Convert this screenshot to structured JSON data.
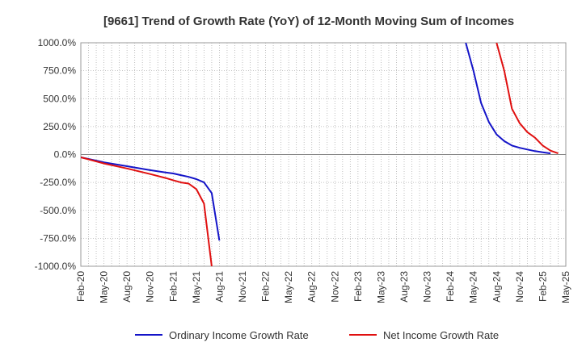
{
  "chart_data": {
    "type": "line",
    "title": "[9661]  Trend of Growth Rate (YoY) of 12-Month Moving Sum of Incomes",
    "xlabel": "",
    "ylabel": "",
    "ylim": [
      -1000,
      1000
    ],
    "y_ticks": [
      1000,
      750,
      500,
      250,
      0,
      -250,
      -500,
      -750,
      -1000
    ],
    "y_tick_labels": [
      "1000.0%",
      "750.0%",
      "500.0%",
      "250.0%",
      "0.0%",
      "-250.0%",
      "-500.0%",
      "-750.0%",
      "-1000.0%"
    ],
    "x_range": [
      "2020-02",
      "2025-05"
    ],
    "x_tick_labels": [
      "Feb-20",
      "May-20",
      "Aug-20",
      "Nov-20",
      "Feb-21",
      "May-21",
      "Aug-21",
      "Nov-21",
      "Feb-22",
      "May-22",
      "Aug-22",
      "Nov-22",
      "Feb-23",
      "May-23",
      "Aug-23",
      "Nov-23",
      "Feb-24",
      "May-24",
      "Aug-24",
      "Nov-24",
      "Feb-25",
      "May-25"
    ],
    "grid": true,
    "legend_position": "bottom",
    "series": [
      {
        "name": "Ordinary Income Growth Rate",
        "color": "#1414c8",
        "points": [
          [
            "2020-02",
            -25
          ],
          [
            "2020-05",
            -70
          ],
          [
            "2020-08",
            -105
          ],
          [
            "2020-11",
            -140
          ],
          [
            "2021-01",
            -160
          ],
          [
            "2021-02",
            -170
          ],
          [
            "2021-03",
            -185
          ],
          [
            "2021-04",
            -200
          ],
          [
            "2021-05",
            -220
          ],
          [
            "2021-06",
            -250
          ],
          [
            "2021-07",
            -345
          ],
          [
            "2021-08",
            -770
          ],
          null,
          [
            "2024-04",
            1000
          ],
          [
            "2024-05",
            750
          ],
          [
            "2024-06",
            460
          ],
          [
            "2024-07",
            290
          ],
          [
            "2024-08",
            180
          ],
          [
            "2024-09",
            120
          ],
          [
            "2024-10",
            80
          ],
          [
            "2024-11",
            60
          ],
          [
            "2024-12",
            45
          ],
          [
            "2025-01",
            30
          ],
          [
            "2025-02",
            20
          ],
          [
            "2025-03",
            10
          ]
        ]
      },
      {
        "name": "Net Income Growth Rate",
        "color": "#e01010",
        "points": [
          [
            "2020-02",
            -25
          ],
          [
            "2020-05",
            -80
          ],
          [
            "2020-08",
            -125
          ],
          [
            "2020-11",
            -175
          ],
          [
            "2021-01",
            -210
          ],
          [
            "2021-02",
            -230
          ],
          [
            "2021-03",
            -250
          ],
          [
            "2021-04",
            -260
          ],
          [
            "2021-05",
            -310
          ],
          [
            "2021-06",
            -440
          ],
          [
            "2021-07",
            -1000
          ],
          null,
          [
            "2024-08",
            1000
          ],
          [
            "2024-09",
            750
          ],
          [
            "2024-10",
            410
          ],
          [
            "2024-11",
            280
          ],
          [
            "2024-12",
            200
          ],
          [
            "2025-01",
            150
          ],
          [
            "2025-02",
            80
          ],
          [
            "2025-03",
            35
          ],
          [
            "2025-04",
            10
          ]
        ]
      }
    ]
  }
}
